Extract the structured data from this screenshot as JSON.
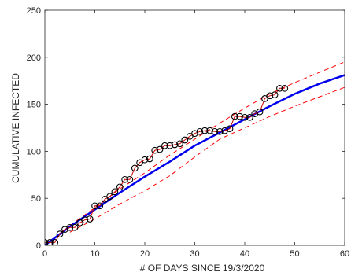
{
  "chart_data": {
    "type": "line",
    "title": "",
    "xlabel": "# OF DAYS SINCE 19/3/2020",
    "ylabel": "CUMULATIVE INFECTED",
    "xlim": [
      0,
      60
    ],
    "ylim": [
      0,
      250
    ],
    "xticks": [
      0,
      10,
      20,
      30,
      40,
      50,
      60
    ],
    "yticks": [
      0,
      50,
      100,
      150,
      200,
      250
    ],
    "grid": false,
    "legend": "none",
    "colors": {
      "observed": "#000000",
      "observed_line": "#c80000",
      "fit": "#0000ee",
      "bounds": "#ff0000"
    },
    "observed": {
      "x": [
        0,
        1,
        2,
        3,
        4,
        5,
        6,
        7,
        8,
        9,
        10,
        11,
        12,
        13,
        14,
        15,
        16,
        17,
        18,
        19,
        20,
        21,
        22,
        23,
        24,
        25,
        26,
        27,
        28,
        29,
        30,
        31,
        32,
        33,
        34,
        35,
        36,
        37,
        38,
        39,
        40,
        41,
        42,
        43,
        44,
        45,
        46,
        47,
        48
      ],
      "y": [
        3,
        3,
        3,
        12,
        17,
        19,
        19,
        24,
        27,
        28,
        42,
        42,
        49,
        52,
        57,
        62,
        70,
        70,
        82,
        88,
        91,
        92,
        101,
        102,
        106,
        106,
        107,
        108,
        112,
        116,
        119,
        121,
        122,
        122,
        121,
        121,
        122,
        124,
        137,
        137,
        136,
        136,
        140,
        142,
        156,
        159,
        160,
        167,
        167
      ]
    },
    "fit": {
      "x": [
        0,
        5,
        10,
        15,
        20,
        25,
        30,
        35,
        40,
        45,
        50,
        55,
        60
      ],
      "y": [
        0,
        20,
        38,
        56,
        73,
        89,
        106,
        120,
        134,
        148,
        161,
        172,
        181
      ]
    },
    "upper_bound": {
      "x": [
        5,
        10,
        15,
        20,
        25,
        30,
        35,
        40,
        45,
        50,
        55,
        60
      ],
      "y": [
        21,
        40,
        60,
        77,
        96,
        113,
        130,
        146,
        161,
        173,
        184,
        195
      ]
    },
    "lower_bound": {
      "x": [
        5,
        10,
        15,
        20,
        25,
        30,
        35,
        40,
        45,
        50,
        55,
        60
      ],
      "y": [
        14,
        28,
        44,
        58,
        74,
        94,
        113,
        125,
        137,
        148,
        158,
        168
      ]
    }
  }
}
